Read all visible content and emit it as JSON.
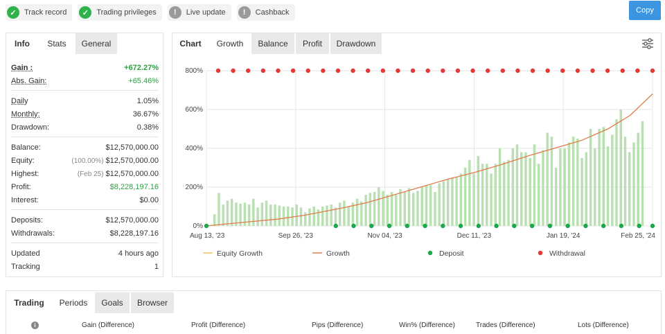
{
  "badges": [
    {
      "label": "Track record",
      "icon": "check-icon",
      "state": "ok"
    },
    {
      "label": "Trading privileges",
      "icon": "check-icon",
      "state": "ok"
    },
    {
      "label": "Live update",
      "icon": "exclamation-icon",
      "state": "off"
    },
    {
      "label": "Cashback",
      "icon": "exclamation-icon",
      "state": "off"
    }
  ],
  "copy_button": {
    "label": "Copy"
  },
  "stats_panel": {
    "tabs": [
      "Info",
      "Stats",
      "General"
    ],
    "active_tab": "Stats",
    "groups": [
      [
        {
          "label": "Gain :",
          "value": "+672.27%",
          "style": "green-bold",
          "underline": true
        },
        {
          "label": "Abs. Gain:",
          "value": "+65.46%",
          "style": "green",
          "underline": true
        }
      ],
      [
        {
          "label": "Daily",
          "value": "1.05%",
          "underline": true
        },
        {
          "label": "Monthly:",
          "value": "36.67%",
          "underline": true
        },
        {
          "label": "Drawdown:",
          "value": "0.38%"
        }
      ],
      [
        {
          "label": "Balance:",
          "value": "$12,570,000.00"
        },
        {
          "label": "Equity:",
          "prefix": "(100.00%)",
          "value": "$12,570,000.00"
        },
        {
          "label": "Highest:",
          "prefix": "(Feb 25)",
          "value": "$12,570,000.00"
        },
        {
          "label": "Profit:",
          "value": "$8,228,197.16",
          "style": "green"
        },
        {
          "label": "Interest:",
          "value": "$0.00"
        }
      ],
      [
        {
          "label": "Deposits:",
          "value": "$12,570,000.00"
        },
        {
          "label": "Withdrawals:",
          "value": "$8,228,197.16"
        }
      ],
      [
        {
          "label": "Updated",
          "value": "4 hours ago"
        },
        {
          "label": "Tracking",
          "value": "1"
        }
      ]
    ]
  },
  "chart_panel": {
    "tabs": [
      "Chart",
      "Growth",
      "Balance",
      "Profit",
      "Drawdown"
    ],
    "active_tab": "Growth",
    "settings_icon": "sliders-icon"
  },
  "chart_data": {
    "type": "line",
    "title": "",
    "xlabel": "",
    "ylabel": "",
    "ylim": [
      0,
      800
    ],
    "y_ticks": [
      "0%",
      "200%",
      "400%",
      "600%",
      "800%"
    ],
    "x_ticks": [
      "Aug 13, '23",
      "Sep 26, '23",
      "Nov 04, '23",
      "Dec 11, '23",
      "Jan 19, '24",
      "Feb 25, '24"
    ],
    "grid": true,
    "legend_position": "bottom",
    "legend": [
      {
        "name": "Equity Growth",
        "marker": "line",
        "color": "#f0c060"
      },
      {
        "name": "Growth",
        "marker": "line",
        "color": "#e07b4a"
      },
      {
        "name": "Deposit",
        "marker": "dot",
        "color": "#1aa84a"
      },
      {
        "name": "Withdrawal",
        "marker": "dot",
        "color": "#e53935"
      }
    ],
    "growth_line": {
      "name": "Growth",
      "color": "#e07b4a",
      "points": [
        [
          0,
          0
        ],
        [
          0.08,
          18
        ],
        [
          0.16,
          35
        ],
        [
          0.22,
          55
        ],
        [
          0.3,
          90
        ],
        [
          0.36,
          120
        ],
        [
          0.42,
          160
        ],
        [
          0.48,
          200
        ],
        [
          0.54,
          240
        ],
        [
          0.6,
          275
        ],
        [
          0.66,
          315
        ],
        [
          0.72,
          360
        ],
        [
          0.78,
          400
        ],
        [
          0.84,
          440
        ],
        [
          0.9,
          500
        ],
        [
          0.95,
          570
        ],
        [
          1.0,
          680
        ]
      ]
    },
    "withdrawal_markers": {
      "y": 800,
      "count": 30,
      "color": "#e53935"
    },
    "deposit_markers": {
      "y": 0,
      "x": [
        0,
        0.29,
        0.33,
        0.37,
        0.41,
        0.45,
        0.49,
        0.53,
        0.57,
        0.61,
        0.65,
        0.69,
        0.73,
        0.77,
        0.81,
        0.85,
        0.89,
        0.93,
        0.97,
        1.0
      ],
      "color": "#1aa84a"
    },
    "bars": {
      "color": "#b8e0b0",
      "values": [
        60,
        170,
        110,
        130,
        140,
        120,
        115,
        120,
        110,
        140,
        95,
        120,
        130,
        110,
        110,
        105,
        100,
        100,
        95,
        110,
        95,
        70,
        90,
        100,
        85,
        100,
        105,
        110,
        95,
        120,
        130,
        100,
        120,
        140,
        125,
        160,
        170,
        175,
        200,
        180,
        160,
        175,
        160,
        190,
        175,
        195,
        170,
        180,
        200,
        210,
        210,
        175,
        220,
        230,
        240,
        250,
        250,
        270,
        300,
        340,
        270,
        360,
        320,
        320,
        270,
        320,
        400,
        330,
        340,
        400,
        420,
        380,
        380,
        350,
        420,
        320,
        390,
        480,
        460,
        300,
        400,
        400,
        430,
        460,
        450,
        350,
        380,
        500,
        400,
        500,
        510,
        410,
        470,
        550,
        600,
        460,
        380,
        430,
        480,
        540
      ]
    }
  },
  "bottom_panel": {
    "tabs": [
      "Trading",
      "Periods",
      "Goals",
      "Browser"
    ],
    "active_tab": "Periods",
    "columns": [
      "Gain (Difference)",
      "Profit (Difference)",
      "Pips (Difference)",
      "Win% (Difference)",
      "Trades (Difference)",
      "Lots (Difference)"
    ]
  }
}
